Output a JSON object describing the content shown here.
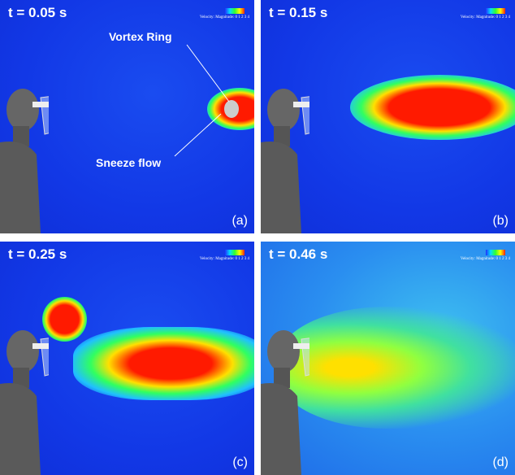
{
  "legend": {
    "title": "Velocity: Magnitude:",
    "ticks": "0 1 2 3 4",
    "colors": [
      "#2030ff",
      "#00e0ff",
      "#30ff30",
      "#ffff00",
      "#ff2000"
    ]
  },
  "panels": [
    {
      "time": "t = 0.05 s",
      "label": "(a)"
    },
    {
      "time": "t = 0.15 s",
      "label": "(b)"
    },
    {
      "time": "t = 0.25 s",
      "label": "(c)"
    },
    {
      "time": "t = 0.46 s",
      "label": "(d)"
    }
  ],
  "annotations": {
    "vortex": "Vortex Ring",
    "sneeze": "Sneeze flow"
  }
}
